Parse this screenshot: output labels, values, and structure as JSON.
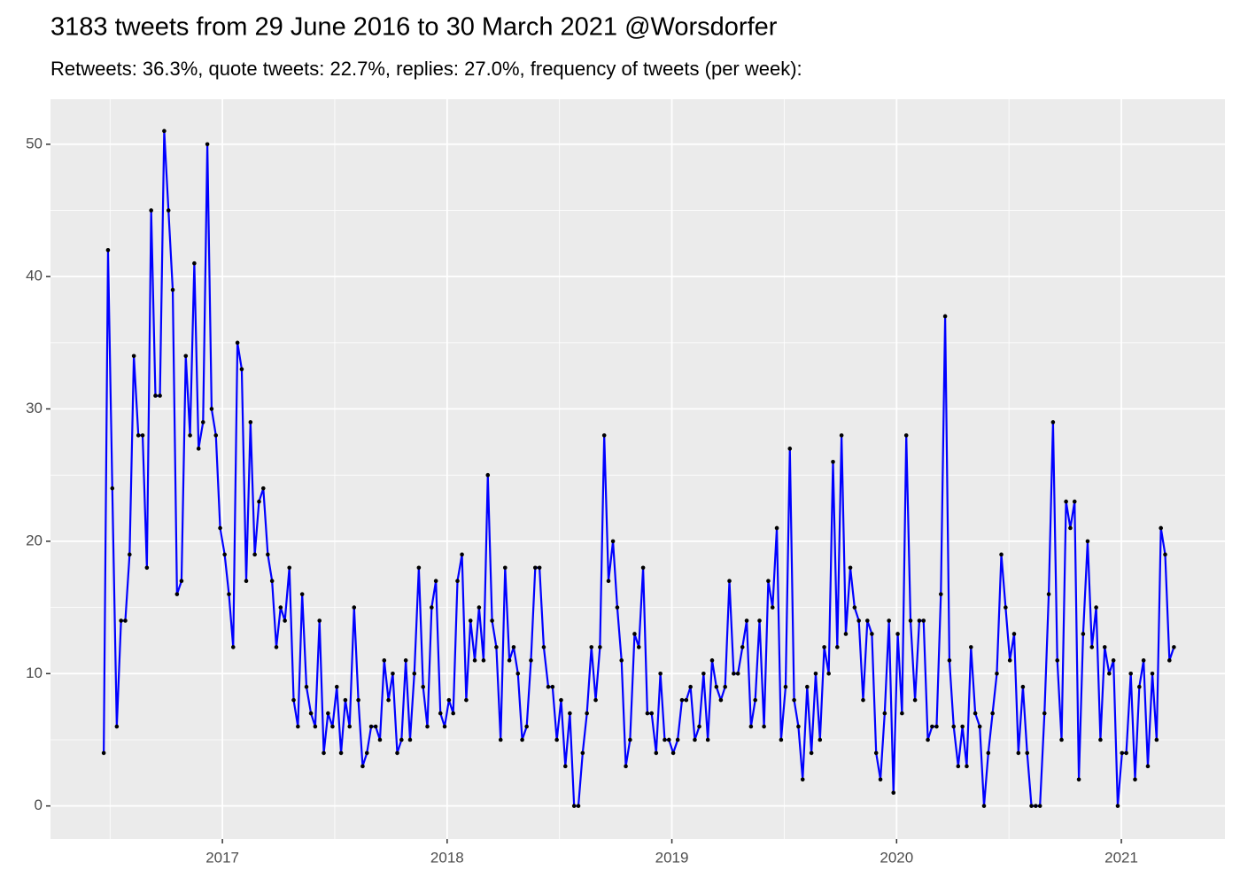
{
  "chart_data": {
    "type": "line",
    "title": "3183 tweets from 29 June 2016 to 30 March 2021 @Worsdorfer",
    "subtitle": "Retweets: 36.3%, quote tweets: 22.7%, replies: 27.0%, frequency of tweets (per week):",
    "color": "#0000ff",
    "point_color": "#000000",
    "grid": true,
    "xlim": [
      2016.235,
      2021.461
    ],
    "xticks": [
      2017,
      2018,
      2019,
      2020,
      2021
    ],
    "ylim": [
      -2.5,
      53.4
    ],
    "yticks": [
      0,
      10,
      20,
      30,
      40,
      50
    ],
    "x": [
      2016.472,
      2016.491,
      2016.51,
      2016.53,
      2016.549,
      2016.568,
      2016.587,
      2016.606,
      2016.626,
      2016.645,
      2016.664,
      2016.683,
      2016.702,
      2016.722,
      2016.741,
      2016.76,
      2016.779,
      2016.798,
      2016.818,
      2016.837,
      2016.856,
      2016.875,
      2016.894,
      2016.914,
      2016.933,
      2016.952,
      2016.971,
      2016.99,
      2017.01,
      2017.029,
      2017.048,
      2017.067,
      2017.086,
      2017.106,
      2017.125,
      2017.144,
      2017.163,
      2017.182,
      2017.202,
      2017.221,
      2017.24,
      2017.259,
      2017.278,
      2017.298,
      2017.317,
      2017.336,
      2017.355,
      2017.374,
      2017.394,
      2017.413,
      2017.432,
      2017.451,
      2017.47,
      2017.49,
      2017.509,
      2017.528,
      2017.547,
      2017.566,
      2017.586,
      2017.605,
      2017.624,
      2017.643,
      2017.662,
      2017.682,
      2017.701,
      2017.72,
      2017.739,
      2017.758,
      2017.778,
      2017.797,
      2017.816,
      2017.835,
      2017.854,
      2017.874,
      2017.893,
      2017.912,
      2017.931,
      2017.95,
      2017.97,
      2017.989,
      2018.008,
      2018.027,
      2018.046,
      2018.066,
      2018.085,
      2018.104,
      2018.123,
      2018.142,
      2018.162,
      2018.181,
      2018.2,
      2018.219,
      2018.238,
      2018.258,
      2018.277,
      2018.296,
      2018.315,
      2018.334,
      2018.354,
      2018.373,
      2018.392,
      2018.411,
      2018.43,
      2018.45,
      2018.469,
      2018.488,
      2018.507,
      2018.526,
      2018.546,
      2018.565,
      2018.584,
      2018.603,
      2018.622,
      2018.642,
      2018.661,
      2018.68,
      2018.699,
      2018.718,
      2018.738,
      2018.757,
      2018.776,
      2018.795,
      2018.814,
      2018.834,
      2018.853,
      2018.872,
      2018.891,
      2018.91,
      2018.93,
      2018.949,
      2018.968,
      2018.987,
      2019.006,
      2019.026,
      2019.045,
      2019.064,
      2019.083,
      2019.102,
      2019.122,
      2019.141,
      2019.16,
      2019.179,
      2019.198,
      2019.218,
      2019.237,
      2019.256,
      2019.275,
      2019.294,
      2019.314,
      2019.333,
      2019.352,
      2019.371,
      2019.39,
      2019.41,
      2019.429,
      2019.448,
      2019.467,
      2019.486,
      2019.506,
      2019.525,
      2019.544,
      2019.563,
      2019.582,
      2019.602,
      2019.621,
      2019.64,
      2019.659,
      2019.678,
      2019.698,
      2019.717,
      2019.736,
      2019.755,
      2019.774,
      2019.794,
      2019.813,
      2019.832,
      2019.851,
      2019.87,
      2019.89,
      2019.909,
      2019.928,
      2019.947,
      2019.966,
      2019.986,
      2020.005,
      2020.024,
      2020.043,
      2020.062,
      2020.082,
      2020.101,
      2020.12,
      2020.139,
      2020.158,
      2020.178,
      2020.197,
      2020.216,
      2020.235,
      2020.254,
      2020.274,
      2020.293,
      2020.312,
      2020.331,
      2020.35,
      2020.37,
      2020.389,
      2020.408,
      2020.427,
      2020.446,
      2020.466,
      2020.485,
      2020.504,
      2020.523,
      2020.542,
      2020.562,
      2020.581,
      2020.6,
      2020.619,
      2020.638,
      2020.658,
      2020.677,
      2020.696,
      2020.715,
      2020.734,
      2020.754,
      2020.773,
      2020.792,
      2020.811,
      2020.83,
      2020.85,
      2020.869,
      2020.888,
      2020.907,
      2020.926,
      2020.946,
      2020.965,
      2020.984,
      2021.003,
      2021.022,
      2021.042,
      2021.061,
      2021.08,
      2021.099,
      2021.118,
      2021.138,
      2021.157,
      2021.176,
      2021.195,
      2021.214,
      2021.234
    ],
    "values": [
      4,
      42,
      24,
      6,
      14,
      14,
      19,
      34,
      28,
      28,
      18,
      45,
      31,
      31,
      51,
      45,
      39,
      16,
      17,
      34,
      28,
      41,
      27,
      29,
      50,
      30,
      28,
      21,
      19,
      16,
      12,
      35,
      33,
      17,
      29,
      19,
      23,
      24,
      19,
      17,
      12,
      15,
      14,
      18,
      8,
      6,
      16,
      9,
      7,
      6,
      14,
      4,
      7,
      6,
      9,
      4,
      8,
      6,
      15,
      8,
      3,
      4,
      6,
      6,
      5,
      11,
      8,
      10,
      4,
      5,
      11,
      5,
      10,
      18,
      9,
      6,
      15,
      17,
      7,
      6,
      8,
      7,
      17,
      19,
      8,
      14,
      11,
      15,
      11,
      25,
      14,
      12,
      5,
      18,
      11,
      12,
      10,
      5,
      6,
      11,
      18,
      18,
      12,
      9,
      9,
      5,
      8,
      3,
      7,
      0,
      0,
      4,
      7,
      12,
      8,
      12,
      28,
      17,
      20,
      15,
      11,
      3,
      5,
      13,
      12,
      18,
      7,
      7,
      4,
      10,
      5,
      5,
      4,
      5,
      8,
      8,
      9,
      5,
      6,
      10,
      5,
      11,
      9,
      8,
      9,
      17,
      10,
      10,
      12,
      14,
      6,
      8,
      14,
      6,
      17,
      15,
      21,
      5,
      9,
      27,
      8,
      6,
      2,
      9,
      4,
      10,
      5,
      12,
      10,
      26,
      12,
      28,
      13,
      18,
      15,
      14,
      8,
      14,
      13,
      4,
      2,
      7,
      14,
      1,
      13,
      7,
      28,
      14,
      8,
      14,
      14,
      5,
      6,
      6,
      16,
      37,
      11,
      6,
      3,
      6,
      3,
      12,
      7,
      6,
      0,
      4,
      7,
      10,
      19,
      15,
      11,
      13,
      4,
      9,
      4,
      0,
      0,
      0,
      7,
      16,
      29,
      11,
      5,
      23,
      21,
      23,
      2,
      13,
      20,
      12,
      15,
      5,
      12,
      10,
      11,
      0,
      4,
      4,
      10,
      2,
      9,
      11,
      3,
      10,
      5,
      21,
      19,
      11,
      12
    ]
  }
}
